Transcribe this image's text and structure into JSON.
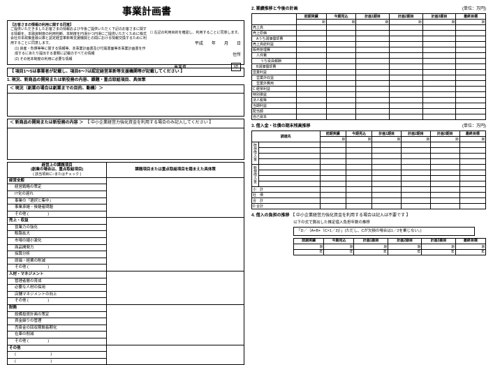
{
  "title": "事業計画書",
  "consent": {
    "header": "【お客さまの情報の利用に関する同意】",
    "text1": "ご提供いただきましたお客さまの情報および今後ご提供いただく下記のお客さまに関する情報を、本融資制度の利用判断、本制度を円滑かつ円滑にご提供いただくために株式会社日本政策金融公庫と認定経営革新等支援機関との間における情報交換するために利用することに同意します。",
    "item1": "(1) 資産・負債等等に関する情報等、本事業計画書及び付属書面等本事業計画書を作成するにあたり提出する書類に記載のすべての情報",
    "item2": "(2) その他本制度の利用に必要な情報",
    "checkbox_label": "左記の利用目的を確認し、利用することに同意します。",
    "date_era": "平成",
    "date_y": "年",
    "date_m": "月",
    "date_d": "日",
    "addr_label": "住所",
    "proprietor_label": "事業者",
    "seal": "印"
  },
  "section1": {
    "note": "【 項目1～5は事業者が記載し、項目6～7は認定経営革新等支援機関等が記載してください 】",
    "h1": "1.  現況、新商品の開発または新役務の内容、課題・重点取組項目、具体策",
    "sub1": "＜ 現況（創業の場合は創業までの目的、動機）＞",
    "sub2": "＜ 新商品の開発または新役務の内容 ＞",
    "sub2_note": "【 中小企業経営力強化資金を利用する場合のみ記入してください 】"
  },
  "issues": {
    "col1_h": "経営上の課題項目\n(創業の場合は、重点取組項目)",
    "col1_sub": "( 該当項目に○またはチェック )",
    "col2_h": "課題項目または重点取組項目を踏まえた具体策",
    "categories": [
      {
        "name": "経営全般",
        "items": [
          "経営戦略の策定",
          "IT化の遅れ",
          "事業の「選択と集中」",
          "事業承継・後継者問題",
          "その他 (　　　　　)"
        ]
      },
      {
        "name": "売上・収益",
        "items": [
          "営業力の強化",
          "販路拡大",
          "市場の縮小激化",
          "商品開発力",
          "採算分析",
          "原価・経費の削減",
          "その他 (　　　　　)"
        ]
      },
      {
        "name": "人材・マネジメント",
        "items": [
          "管理者層の育成",
          "必要な人材の採用",
          "店舗マネジメントの向上",
          "その他 (　　　　　)"
        ]
      },
      {
        "name": "財務",
        "items": [
          "設備投資計画の策定",
          "資金繰りの管理",
          "売掛金の回収期間長期化",
          "在庫の削減",
          "その他 (　　　　　)"
        ]
      },
      {
        "name": "その他",
        "items": [
          "(　　　　　　　　　)",
          "(　　　　　　　　　)"
        ]
      }
    ]
  },
  "sec2": {
    "title": "2.  業績推移と今後の計画",
    "unit": "(単位：万円)",
    "cols": [
      "前期実績",
      "今期見込",
      "計画1期目",
      "計画2期目",
      "計画3期目",
      "最終目標"
    ],
    "period_sub": "期",
    "rows": [
      {
        "l": "売上高",
        "i": 0
      },
      {
        "l": "売上原価",
        "i": 0
      },
      {
        "l": "Aうち減価償却費",
        "i": 1
      },
      {
        "l": "売上高総利益",
        "i": 0
      },
      {
        "l": "販売管理費",
        "i": 0
      },
      {
        "l": "人件費",
        "i": 1
      },
      {
        "l": "うち役員報酬",
        "i": 2
      },
      {
        "l": "B減価償却費",
        "i": 1
      },
      {
        "l": "営業利益",
        "i": 0
      },
      {
        "l": "営業外収益",
        "i": 1
      },
      {
        "l": "営業外費用",
        "i": 1
      },
      {
        "l": "C  経常利益",
        "i": 0
      },
      {
        "l": "特別損益",
        "i": 0
      },
      {
        "l": "法人税等",
        "i": 0
      },
      {
        "l": "当期利益",
        "i": 0
      },
      {
        "l": "配当額",
        "i": 0
      },
      {
        "l": "自己資本",
        "i": 0
      }
    ]
  },
  "sec3": {
    "title": "3.  借入金・社債の期末残高推移",
    "unit": "(単位：万円)",
    "rowhead": "調達先",
    "cols": [
      "前期実績",
      "今期見込",
      "計画1期目",
      "計画2期目",
      "計画3期目",
      "最終目標"
    ],
    "period_sub": "期",
    "side_labels": [
      "既存借入金",
      "新規借入金"
    ],
    "footer_rows": [
      "小　計",
      "社　債",
      "合　計",
      "D 合計"
    ]
  },
  "sec4": {
    "title": "4.  借入の負担の推移",
    "note_inline": "【 中小企業経営力強化資金を利用する場合は記入は不要です 】",
    "sub": "以下の式で算出した推定借入負担年数の推移",
    "formula": "「D／（A+B+（C×1／2)）」(ただし、Cが欠損の場合は1／2を乗じない。)",
    "cols": [
      "前期実績",
      "今期見込",
      "計画1期目",
      "計画2期目",
      "計画3期目",
      "最終目標"
    ],
    "period_sub": "期",
    "year_unit": "年"
  }
}
